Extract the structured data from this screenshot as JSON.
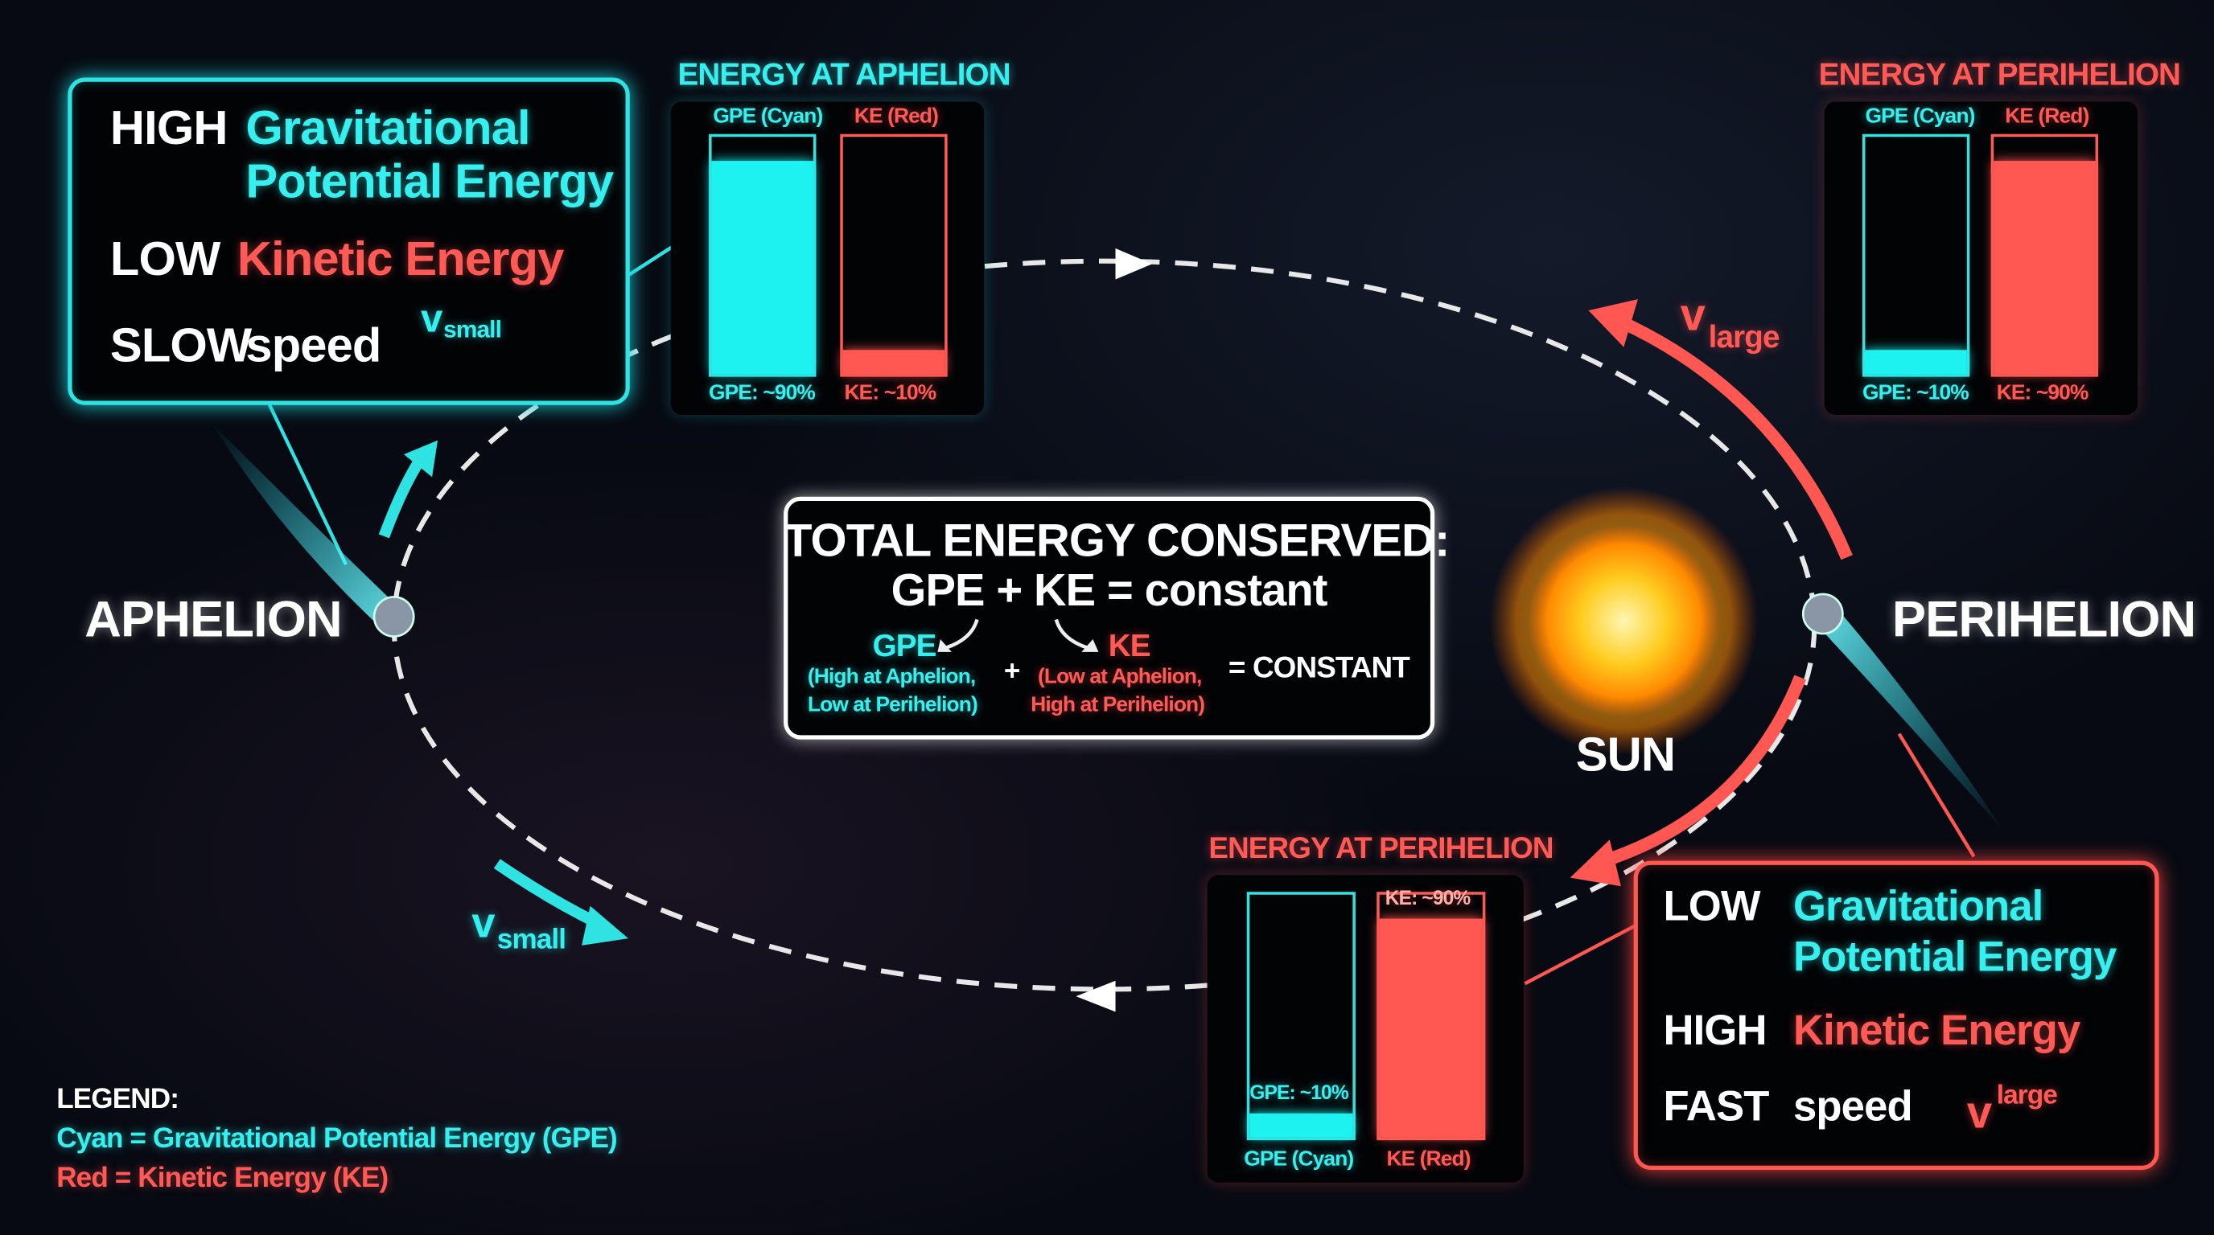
{
  "colors": {
    "gpe": "#2fe3e3",
    "ke": "#ff5752",
    "background": "#070a12",
    "orbit": "#ffffff"
  },
  "aphelion_box": {
    "line1_level": "HIGH",
    "line1_text_a": "Gravitational",
    "line1_text_b": "Potential Energy",
    "line2_level": "LOW",
    "line2_text": "Kinetic Energy",
    "line3_level": "SLOW",
    "line3_text": "speed",
    "velocity_symbol": "v",
    "velocity_sub": "small",
    "arrow_icon": "arrow-right-icon"
  },
  "aphelion_panel": {
    "title": "ENERGY AT APHELION",
    "gpe_header": "GPE (Cyan)",
    "ke_header": "KE (Red)",
    "gpe_label": "GPE: ~90%",
    "ke_label": "KE: ~10%",
    "gpe_percent": 90,
    "ke_percent": 10
  },
  "perihelion_panel_top": {
    "title": "ENERGY AT PERIHELION",
    "gpe_header": "GPE (Cyan)",
    "ke_header": "KE (Red)",
    "gpe_label": "GPE: ~10%",
    "ke_label": "KE: ~90%",
    "gpe_percent": 10,
    "ke_percent": 90
  },
  "perihelion_panel_bottom": {
    "title": "ENERGY AT PERIHELION",
    "gpe_label": "GPE: ~10%",
    "ke_label": "KE: ~90%",
    "gpe_footer": "GPE (Cyan)",
    "ke_footer": "KE (Red)",
    "gpe_percent": 10,
    "ke_percent": 90
  },
  "perihelion_box": {
    "line1_level": "LOW",
    "line1_text_a": "Gravitational",
    "line1_text_b": "Potential Energy",
    "line2_level": "HIGH",
    "line2_text": "Kinetic Energy",
    "line3_level": "FAST",
    "line3_text": "speed",
    "velocity_symbol": "v",
    "velocity_sup": "large",
    "arrow_icon": "arrow-right-icon"
  },
  "center_box": {
    "title": "TOTAL ENERGY CONSERVED:",
    "equation": "GPE + KE = constant",
    "gpe": "GPE",
    "gpe_note1": "(High at Aphelion,",
    "gpe_note2": "Low at Perihelion)",
    "plus": "+",
    "ke": "KE",
    "ke_note1": "(Low at Aphelion,",
    "ke_note2": "High at Perihelion)",
    "result": "= CONSTANT"
  },
  "labels": {
    "aphelion": "APHELION",
    "perihelion": "PERIHELION",
    "sun": "SUN"
  },
  "velocity_labels": {
    "top_right_symbol": "v",
    "top_right_sub": "large",
    "bottom_left_symbol": "v",
    "bottom_left_sub": "small"
  },
  "legend": {
    "title": "LEGEND:",
    "cyan": "Cyan = Gravitational Potential Energy (GPE)",
    "red": "Red = Kinetic Energy (KE)"
  }
}
